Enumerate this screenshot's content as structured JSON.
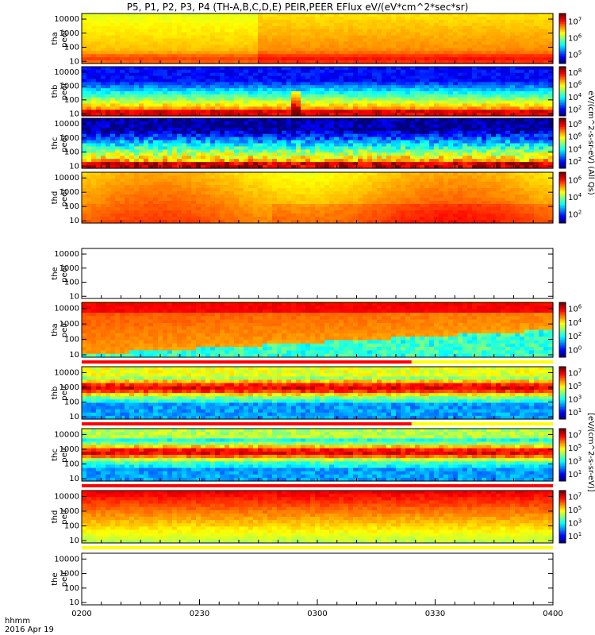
{
  "title": "P5, P1, P2, P3, P4 (TH-A,B,C,D,E) PEIR,PEER EFlux eV/(eV*cm^2*sec*sr)",
  "footer": {
    "time_label": "hhmm",
    "date_label": "2016 Apr 19"
  },
  "chart_data": {
    "type": "heatmap",
    "x_tick_labels": [
      "0200",
      "0230",
      "0300",
      "0330",
      "0400"
    ],
    "y_tick_labels": [
      "10",
      "100",
      "1000",
      "10000"
    ],
    "colorbar_unit_peer": "eV/(cm^2-s-sr-eV) (All Qs)",
    "colorbar_unit_peir": "[eV/(cm^2-s-sr-eV)]",
    "panels": [
      {
        "label": "tha peer",
        "has_data": true,
        "style": "peer-a",
        "colorbar": [
          "10^5",
          "10^6",
          "10^7"
        ]
      },
      {
        "label": "thb peer",
        "has_data": true,
        "style": "peer-b",
        "colorbar": [
          "10^2",
          "10^4",
          "10^6",
          "10^8"
        ]
      },
      {
        "label": "thc peer",
        "has_data": true,
        "style": "peer-c",
        "colorbar": [
          "10^2",
          "10^4",
          "10^6",
          "10^8"
        ]
      },
      {
        "label": "thd peer",
        "has_data": true,
        "style": "peer-d",
        "colorbar": [
          "10^2",
          "10^4",
          "10^6"
        ]
      },
      {
        "label": "the peer",
        "has_data": false,
        "style": "empty",
        "colorbar": []
      },
      {
        "label": "tha peir",
        "has_data": true,
        "style": "peir-a",
        "colorbar": [
          "10^0",
          "10^2",
          "10^4",
          "10^6"
        ]
      },
      {
        "label": "thb peir",
        "has_data": true,
        "style": "peir-b",
        "colorbar": [
          "10^1",
          "10^3",
          "10^5",
          "10^7"
        ]
      },
      {
        "label": "thc peir",
        "has_data": true,
        "style": "peir-c",
        "colorbar": [
          "10^1",
          "10^3",
          "10^5",
          "10^7"
        ]
      },
      {
        "label": "thd peir",
        "has_data": true,
        "style": "peir-d",
        "colorbar": [
          "10^1",
          "10^3",
          "10^5",
          "10^7"
        ]
      },
      {
        "label": "the peir",
        "has_data": false,
        "style": "empty",
        "colorbar": []
      }
    ]
  }
}
